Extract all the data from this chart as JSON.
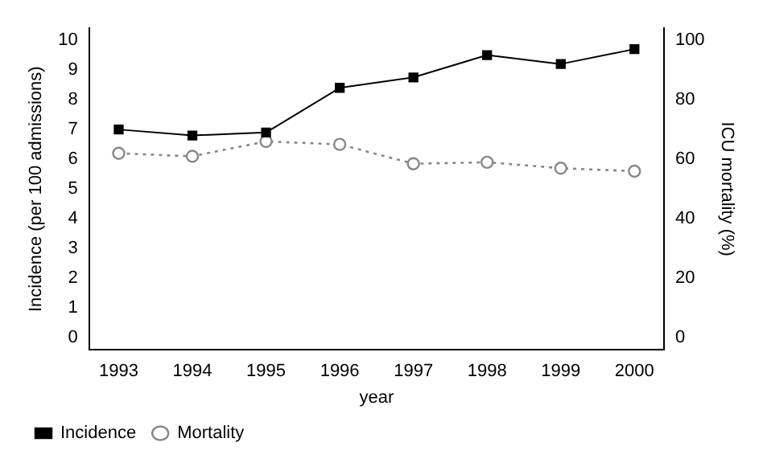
{
  "chart_data": {
    "type": "line",
    "xlabel": "year",
    "ylabel": "Incidence (per 100 admissions)",
    "y2label": "ICU mortality (%)",
    "x": [
      1993,
      1994,
      1995,
      1996,
      1997,
      1998,
      1999,
      2000
    ],
    "series": [
      {
        "name": "Incidence",
        "color": "#000000",
        "values": [
          7.0,
          6.8,
          6.9,
          8.4,
          8.75,
          9.5,
          9.2,
          9.7
        ],
        "marker": "square",
        "line_style": "solid"
      },
      {
        "name": "Mortality",
        "color": "#888888",
        "values": [
          62,
          61,
          66,
          65,
          58.5,
          59,
          57,
          56
        ],
        "axis": "y2",
        "marker": "circle",
        "line_style": "dotted"
      }
    ],
    "xlim": [
      1992.6,
      2000.4
    ],
    "xticks": [
      1993,
      1994,
      1995,
      1996,
      1997,
      1998,
      1999,
      2000
    ],
    "ylim": [
      -0.4,
      10.4
    ],
    "yticks": [
      0,
      1,
      2,
      3,
      4,
      5,
      6,
      7,
      8,
      9,
      10
    ],
    "y2lim": [
      -4,
      104
    ],
    "y2ticks": [
      0,
      20,
      40,
      60,
      80,
      100
    ],
    "grid": false,
    "legend": "bottom left"
  }
}
